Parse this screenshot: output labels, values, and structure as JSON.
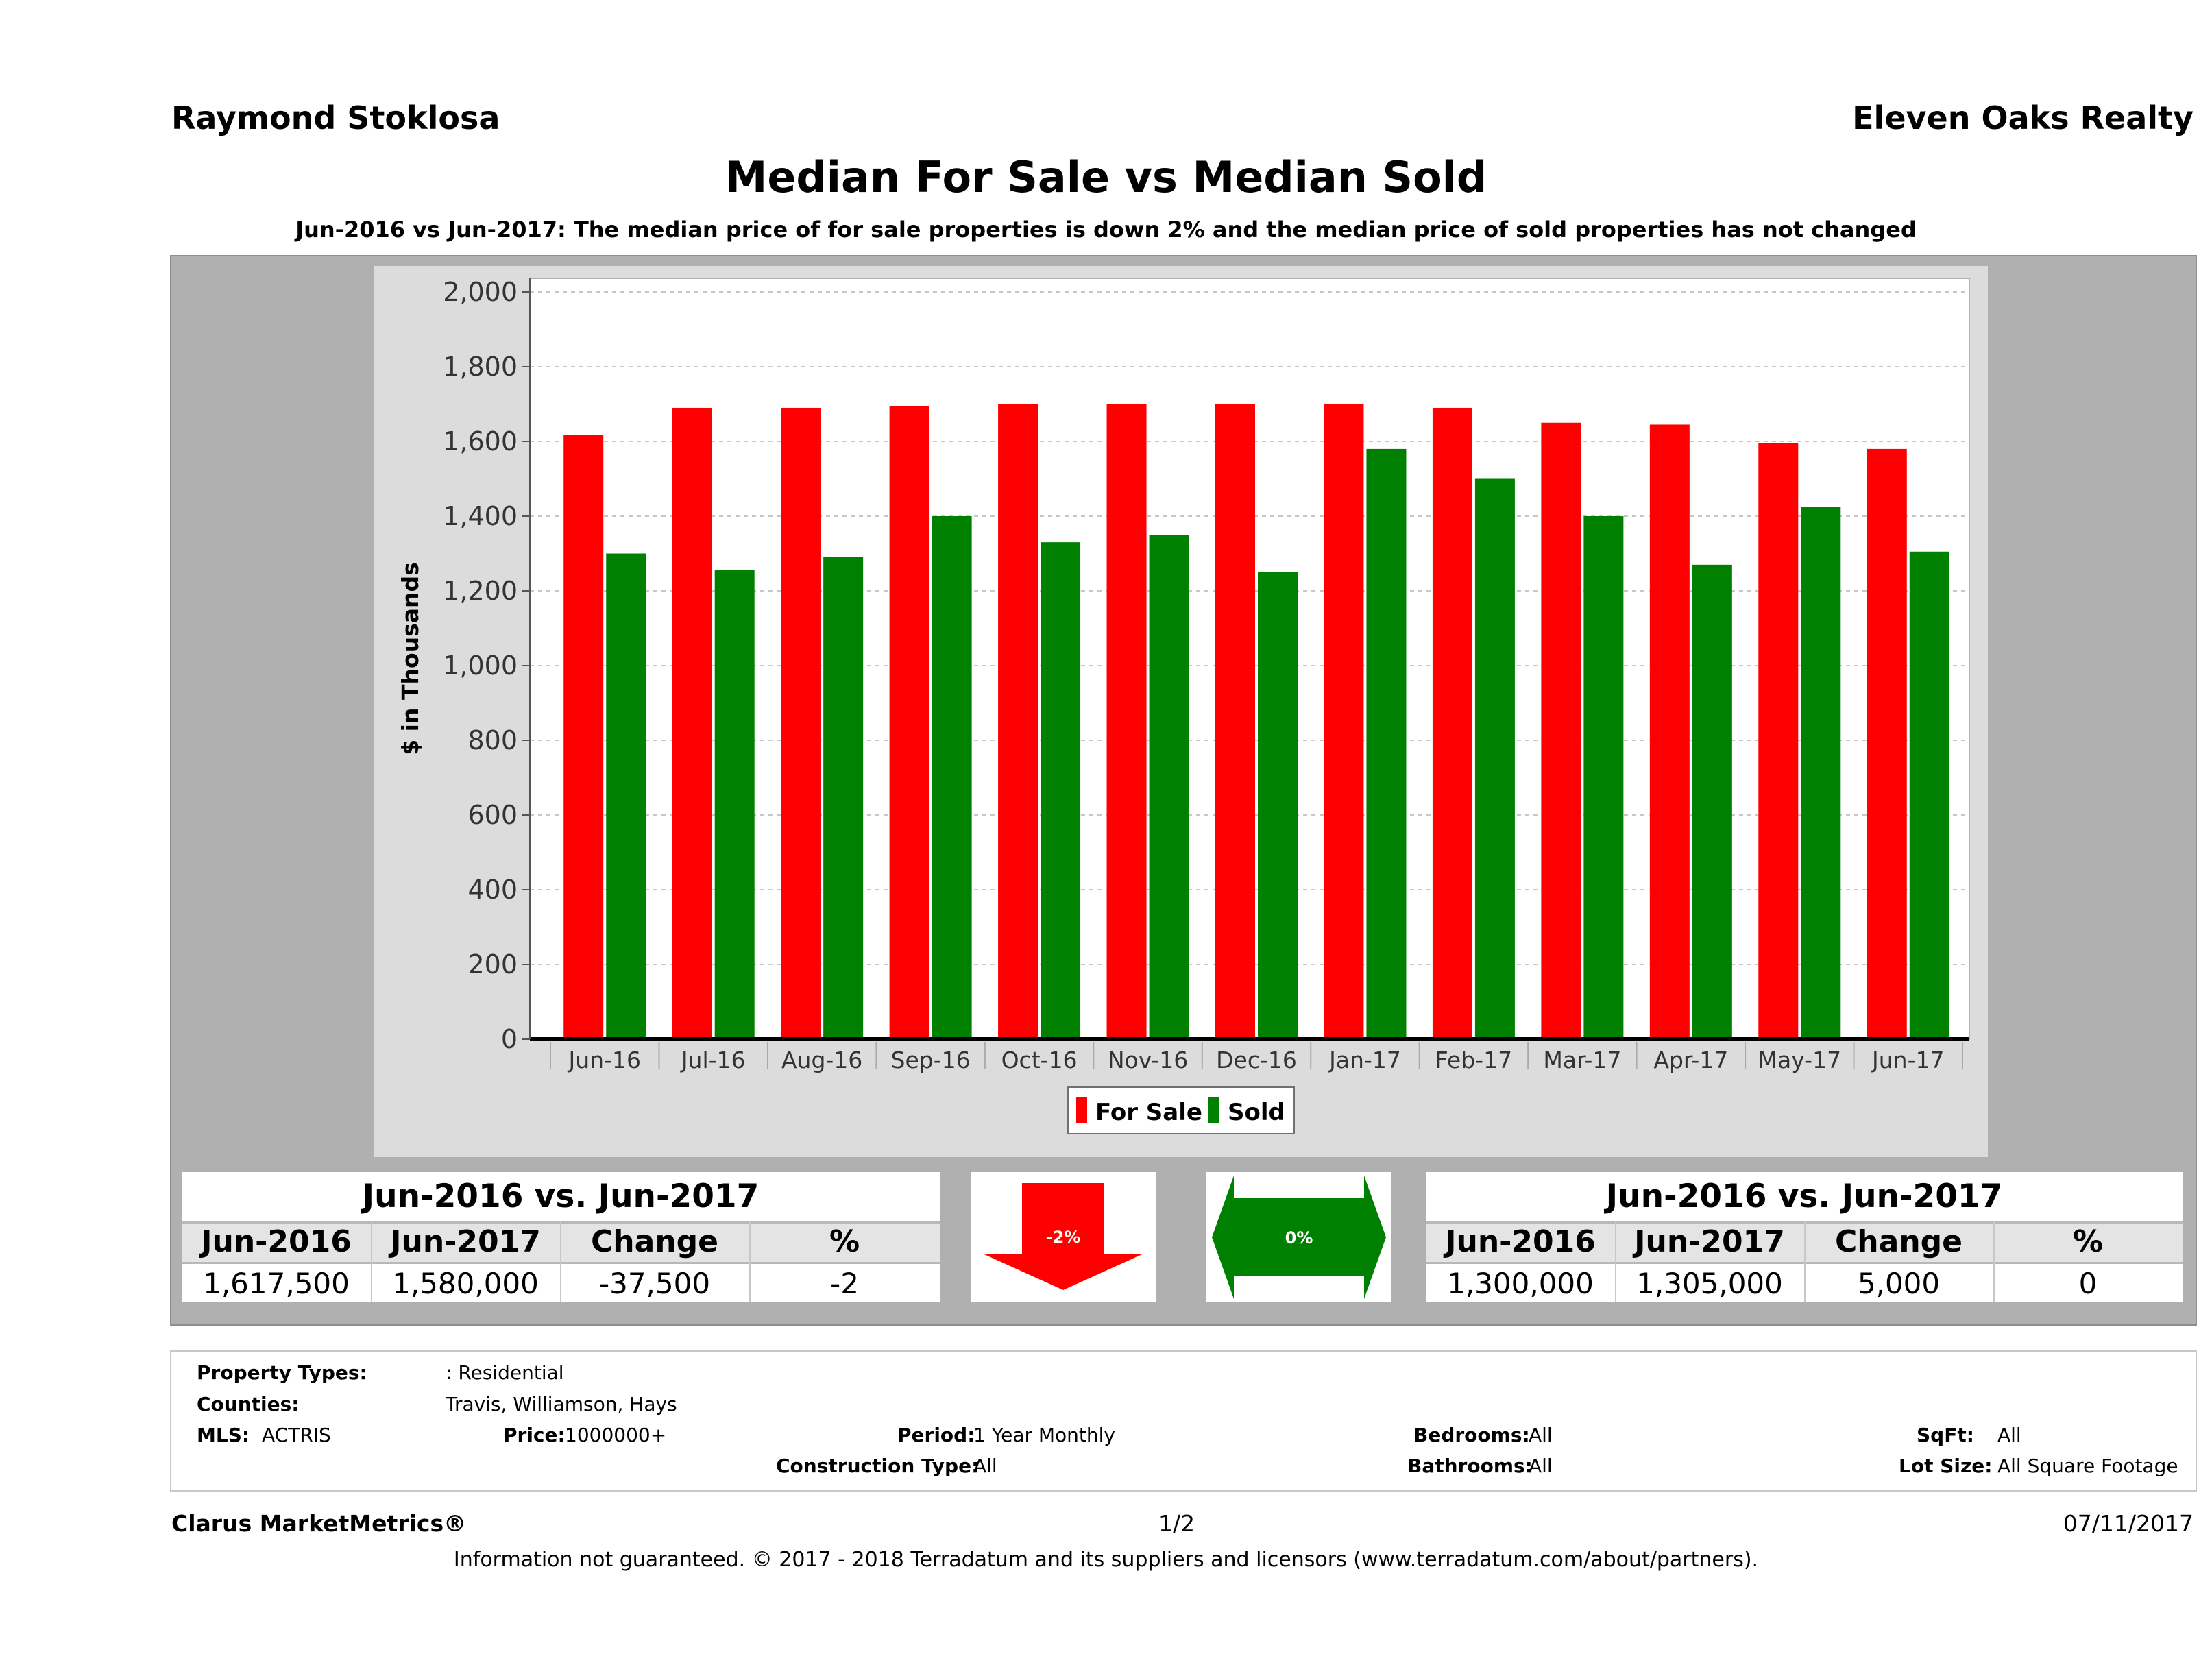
{
  "header": {
    "agent": "Raymond Stoklosa",
    "brokerage": "Eleven Oaks Realty",
    "title": "Median For Sale vs Median Sold",
    "subtitle": "Jun-2016 vs Jun-2017: The median price of for sale properties is down 2% and the median price of sold properties has not changed"
  },
  "chart_data": {
    "type": "bar",
    "categories": [
      "Jun-16",
      "Jul-16",
      "Aug-16",
      "Sep-16",
      "Oct-16",
      "Nov-16",
      "Dec-16",
      "Jan-17",
      "Feb-17",
      "Mar-17",
      "Apr-17",
      "May-17",
      "Jun-17"
    ],
    "series": [
      {
        "name": "For Sale",
        "color": "#ff0000",
        "values": [
          1617.5,
          1690,
          1690,
          1695,
          1700,
          1700,
          1700,
          1700,
          1690,
          1650,
          1645,
          1595,
          1580
        ]
      },
      {
        "name": "Sold",
        "color": "#008000",
        "values": [
          1300,
          1255,
          1290,
          1400,
          1330,
          1350,
          1250,
          1580,
          1500,
          1400,
          1270,
          1425,
          1305
        ]
      }
    ],
    "ylabel": "$ in Thousands",
    "xlabel": "",
    "ylim": [
      0,
      2000
    ],
    "yticks": [
      0,
      200,
      400,
      600,
      800,
      1000,
      1200,
      1400,
      1600,
      1800,
      2000
    ],
    "ytick_labels": [
      "0",
      "200",
      "400",
      "600",
      "800",
      "1,000",
      "1,200",
      "1,400",
      "1,600",
      "1,800",
      "2,000"
    ],
    "grid": true,
    "legend": "bottom-center"
  },
  "forsale_table": {
    "title": "Jun-2016 vs. Jun-2017",
    "headers": [
      "Jun-2016",
      "Jun-2017",
      "Change",
      "%"
    ],
    "values": [
      "1,617,500",
      "1,580,000",
      "-37,500",
      "-2"
    ]
  },
  "sold_table": {
    "title": "Jun-2016 vs. Jun-2017",
    "headers": [
      "Jun-2016",
      "Jun-2017",
      "Change",
      "%"
    ],
    "values": [
      "1,300,000",
      "1,305,000",
      "5,000",
      "0"
    ]
  },
  "indicators": {
    "forsale": {
      "label": "-2%",
      "color": "#ff0000",
      "icon": "down-arrow-icon"
    },
    "sold": {
      "label": "0%",
      "color": "#008000",
      "icon": "left-right-arrow-icon"
    }
  },
  "criteria": {
    "property_types_label": "Property Types:",
    "property_types_value": ": Residential",
    "counties_label": "Counties:",
    "counties_value": "Travis, Williamson, Hays",
    "mls_label": "MLS:",
    "mls_value": "ACTRIS",
    "price_label": "Price:",
    "price_value": "1000000+",
    "period_label": "Period:",
    "period_value": "1 Year Monthly",
    "construction_label": "Construction Type:",
    "construction_value": "All",
    "bedrooms_label": "Bedrooms:",
    "bedrooms_value": "All",
    "bathrooms_label": "Bathrooms:",
    "bathrooms_value": "All",
    "sqft_label": "SqFt:",
    "sqft_value": "All",
    "lotsize_label": "Lot Size:",
    "lotsize_value": "All Square Footage"
  },
  "footer": {
    "brand": "Clarus MarketMetrics®",
    "page": "1/2",
    "date": "07/11/2017",
    "disclaimer": "Information not guaranteed. © 2017 - 2018 Terradatum and its suppliers and licensors (www.terradatum.com/about/partners)."
  }
}
